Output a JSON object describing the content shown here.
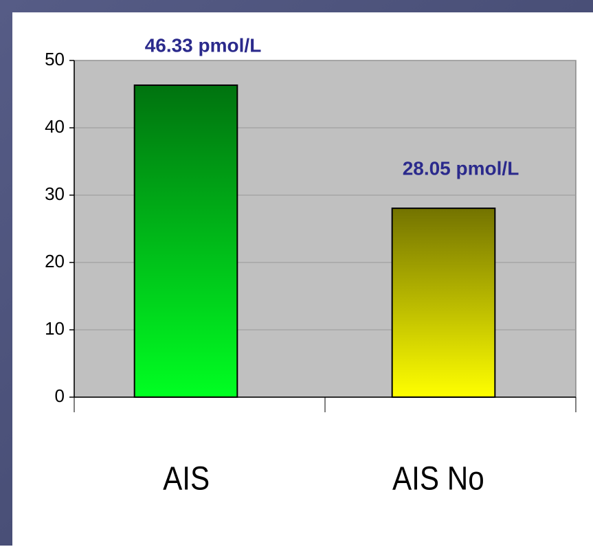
{
  "chart_data": {
    "type": "bar",
    "categories": [
      "AIS",
      "AIS No"
    ],
    "values": [
      46.33,
      28.05
    ],
    "value_labels": [
      "46.33 pmol/L",
      "28.05 pmol/L"
    ],
    "colors": [
      "#00ff22",
      "#ffff00"
    ],
    "ylim": [
      0,
      50
    ],
    "yticks": [
      0,
      10,
      20,
      30,
      40,
      50
    ],
    "grid": true
  }
}
